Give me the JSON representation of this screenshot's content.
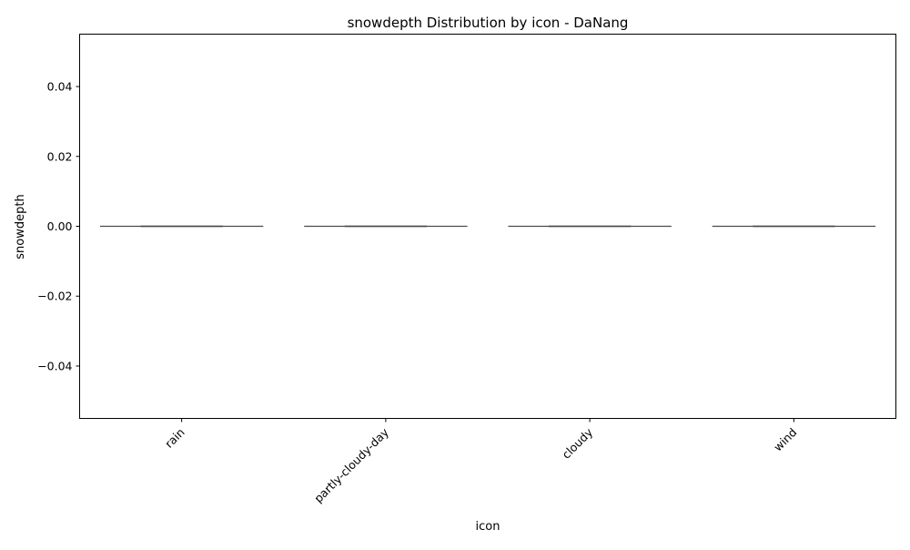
{
  "chart_data": {
    "type": "box",
    "title": "snowdepth Distribution by icon - DaNang",
    "xlabel": "icon",
    "ylabel": "snowdepth",
    "categories": [
      "rain",
      "partly-cloudy-day",
      "cloudy",
      "wind"
    ],
    "boxes": [
      {
        "category": "rain",
        "min": 0,
        "q1": 0,
        "median": 0,
        "q3": 0,
        "max": 0
      },
      {
        "category": "partly-cloudy-day",
        "min": 0,
        "q1": 0,
        "median": 0,
        "q3": 0,
        "max": 0
      },
      {
        "category": "cloudy",
        "min": 0,
        "q1": 0,
        "median": 0,
        "q3": 0,
        "max": 0
      },
      {
        "category": "wind",
        "min": 0,
        "q1": 0,
        "median": 0,
        "q3": 0,
        "max": 0
      }
    ],
    "yticks": [
      -0.04,
      -0.02,
      0.0,
      0.02,
      0.04
    ],
    "ytick_labels": [
      "−0.04",
      "−0.02",
      "0.00",
      "0.02",
      "0.04"
    ],
    "ylim": [
      -0.055,
      0.055
    ],
    "grid": false,
    "colors": {
      "box_line": "#4a4a4a",
      "axis": "#000000"
    }
  }
}
